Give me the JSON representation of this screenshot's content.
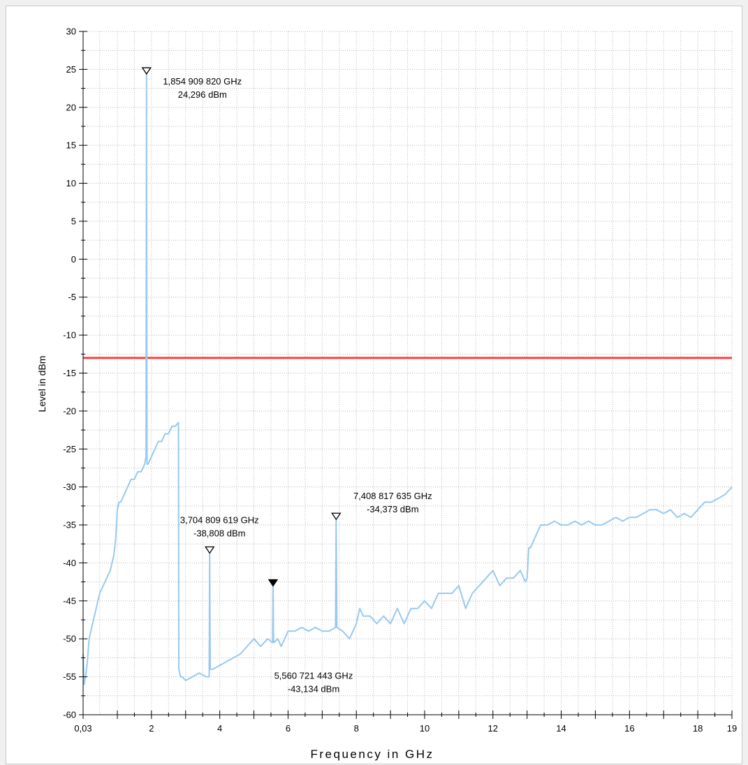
{
  "chart_data": {
    "type": "line",
    "xlabel": "Frequency in GHz",
    "ylabel": "Level in dBm",
    "xlim": [
      0.03,
      19
    ],
    "ylim": [
      -60,
      30
    ],
    "x_ticks": [
      0.03,
      1,
      2,
      3,
      4,
      5,
      6,
      7,
      8,
      9,
      10,
      11,
      12,
      13,
      14,
      15,
      16,
      17,
      18,
      19
    ],
    "x_tick_labels": [
      "0,03",
      "",
      "2",
      "",
      "4",
      "",
      "6",
      "",
      "8",
      "",
      "10",
      "",
      "12",
      "",
      "14",
      "",
      "16",
      "",
      "18",
      "19"
    ],
    "y_ticks": [
      -60,
      -55,
      -50,
      -45,
      -40,
      -35,
      -30,
      -25,
      -20,
      -15,
      -10,
      -5,
      0,
      5,
      10,
      15,
      20,
      25,
      30
    ],
    "y_tick_labels": [
      "-60",
      "-55",
      "-50",
      "-45",
      "-40",
      "-35",
      "-30",
      "-25",
      "-20",
      "-15",
      "-10",
      "-5",
      "0",
      "5",
      "10",
      "15",
      "20",
      "25",
      "30"
    ],
    "grid": true,
    "limit_line": {
      "value": -13,
      "color": "#ff4040"
    },
    "series": [
      {
        "color": "#99c9f0",
        "x": [
          0.03,
          0.06,
          0.1,
          0.15,
          0.2,
          0.3,
          0.4,
          0.5,
          0.6,
          0.7,
          0.8,
          0.9,
          0.95,
          1.0,
          1.05,
          1.1,
          1.2,
          1.3,
          1.4,
          1.5,
          1.6,
          1.7,
          1.8,
          1.84,
          1.855,
          1.87,
          1.9,
          2.0,
          2.1,
          2.2,
          2.3,
          2.4,
          2.5,
          2.6,
          2.7,
          2.79,
          2.8,
          2.85,
          2.9,
          3.0,
          3.2,
          3.4,
          3.6,
          3.69,
          3.705,
          3.72,
          3.8,
          4.0,
          4.2,
          4.4,
          4.6,
          4.8,
          5.0,
          5.2,
          5.4,
          5.55,
          5.561,
          5.575,
          5.7,
          5.8,
          6.0,
          6.2,
          6.4,
          6.6,
          6.8,
          7.0,
          7.2,
          7.39,
          7.409,
          7.43,
          7.6,
          7.8,
          8.0,
          8.1,
          8.2,
          8.4,
          8.6,
          8.8,
          9.0,
          9.2,
          9.4,
          9.6,
          9.8,
          10.0,
          10.2,
          10.4,
          10.6,
          10.8,
          11.0,
          11.2,
          11.4,
          11.6,
          11.8,
          12.0,
          12.2,
          12.4,
          12.6,
          12.8,
          12.95,
          13.0,
          13.05,
          13.1,
          13.2,
          13.4,
          13.6,
          13.8,
          14.0,
          14.2,
          14.4,
          14.6,
          14.8,
          15.0,
          15.2,
          15.4,
          15.6,
          15.8,
          16.0,
          16.2,
          16.4,
          16.6,
          16.8,
          17.0,
          17.2,
          17.4,
          17.6,
          17.8,
          18.0,
          18.2,
          18.4,
          18.6,
          18.8,
          19.0
        ],
        "y": [
          -52,
          -56,
          -55,
          -53,
          -50,
          -48,
          -46,
          -44,
          -43,
          -42,
          -41,
          -39,
          -37,
          -33,
          -32,
          -32,
          -31,
          -30,
          -29,
          -29,
          -28,
          -28,
          -27,
          -26,
          24.3,
          -27,
          -27,
          -26,
          -25,
          -24,
          -24,
          -23,
          -23,
          -22,
          -22,
          -21.5,
          -54,
          -55,
          -55,
          -55.5,
          -55,
          -54.5,
          -55,
          -55,
          -38.8,
          -54,
          -54,
          -53.5,
          -53,
          -52.5,
          -52,
          -51,
          -50,
          -51,
          -50,
          -50.5,
          -43.1,
          -50.5,
          -50,
          -51,
          -49,
          -49,
          -48.5,
          -49,
          -48.5,
          -49,
          -49,
          -48.5,
          -34.4,
          -48.5,
          -49,
          -50,
          -48,
          -46,
          -47,
          -47,
          -48,
          -47,
          -48,
          -46,
          -48,
          -46,
          -46,
          -45,
          -46,
          -44,
          -44,
          -44,
          -43,
          -46,
          -44,
          -43,
          -42,
          -41,
          -43,
          -42,
          -42,
          -41,
          -42.5,
          -42,
          -38,
          -38,
          -37,
          -35,
          -35,
          -34.5,
          -35,
          -35,
          -34.5,
          -35,
          -34.5,
          -35,
          -35,
          -34.5,
          -34,
          -34.5,
          -34,
          -34,
          -33.5,
          -33,
          -33,
          -33.5,
          -33,
          -34,
          -33.5,
          -34,
          -33,
          -32,
          -32,
          -31.5,
          -31,
          -30
        ]
      }
    ],
    "markers": [
      {
        "x": 1.85490982,
        "y": 24.296,
        "filled": false,
        "freq_label": "1,854 909 820 GHz",
        "level_label": "24,296 dBm"
      },
      {
        "x": 3.704809619,
        "y": -38.808,
        "filled": false,
        "freq_label": "3,704 809 619 GHz",
        "level_label": "-38,808 dBm"
      },
      {
        "x": 5.560721443,
        "y": -43.134,
        "filled": true,
        "freq_label": "5,560 721 443 GHz",
        "level_label": "-43,134 dBm"
      },
      {
        "x": 7.408817635,
        "y": -34.373,
        "filled": false,
        "freq_label": "7,408 817 635 GHz",
        "level_label": "-34,373 dBm"
      }
    ]
  }
}
